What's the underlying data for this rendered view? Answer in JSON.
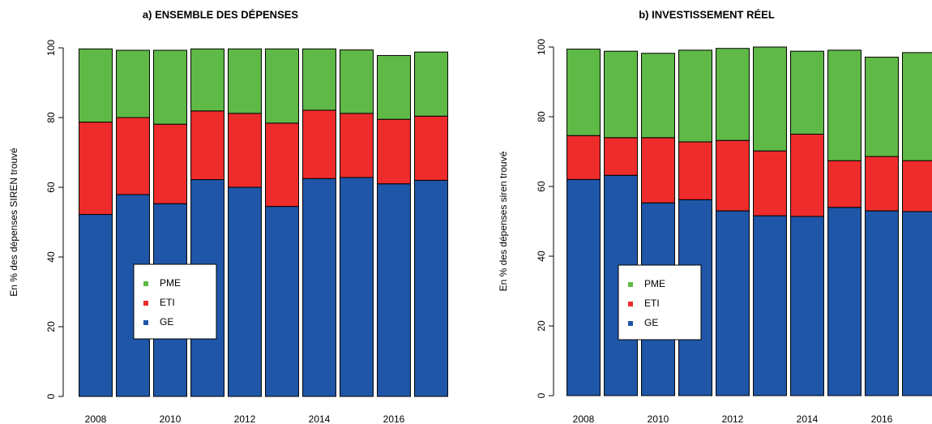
{
  "chart_data": [
    {
      "type": "stacked-bar",
      "title": "a) ENSEMBLE DES DÉPENSES",
      "y_label": "En % des dépenses SIREN trouvé",
      "categories": [
        "2008",
        null,
        "2010",
        null,
        "2012",
        null,
        "2014",
        null,
        "2016",
        null
      ],
      "ylim": [
        0,
        100
      ],
      "yticks": [
        0,
        20,
        40,
        60,
        80,
        100
      ],
      "legend": "bottom-left",
      "series": [
        {
          "name": "GE",
          "color": "#1f56a8",
          "values": [
            52.2,
            57.9,
            55.3,
            62.2,
            60,
            54.5,
            62.5,
            62.8,
            61,
            62
          ]
        },
        {
          "name": "ETI",
          "color": "#ee2c2c",
          "values": [
            26.5,
            22.1,
            22.8,
            19.7,
            21.2,
            23.9,
            19.6,
            18.4,
            18.5,
            18.4
          ]
        },
        {
          "name": "PME",
          "color": "#5fb946",
          "values": [
            21,
            19.3,
            21.2,
            17.8,
            18.5,
            21.3,
            17.6,
            18.2,
            18.3,
            18.4
          ]
        }
      ]
    },
    {
      "type": "stacked-bar",
      "title": "b) INVESTISSEMENT RÉEL",
      "y_label": "En % des dépenses siren trouvé",
      "categories": [
        "2008",
        null,
        "2010",
        null,
        "2012",
        null,
        "2014",
        null,
        "2016",
        null
      ],
      "ylim": [
        0,
        100
      ],
      "yticks": [
        0,
        20,
        40,
        60,
        80,
        100
      ],
      "legend": "bottom-left",
      "series": [
        {
          "name": "GE",
          "color": "#1f56a8",
          "values": [
            62,
            63.2,
            55.3,
            56.2,
            53,
            51.6,
            51.4,
            54,
            53,
            52.8
          ]
        },
        {
          "name": "ETI",
          "color": "#ee2c2c",
          "values": [
            12.6,
            10.8,
            18.7,
            16.6,
            20.2,
            18.6,
            23.6,
            13.4,
            15.6,
            14.6
          ]
        },
        {
          "name": "PME",
          "color": "#5fb946",
          "values": [
            24.8,
            24.8,
            24.2,
            26.3,
            26.4,
            29.8,
            23.8,
            31.7,
            28.5,
            31
          ]
        }
      ]
    }
  ]
}
